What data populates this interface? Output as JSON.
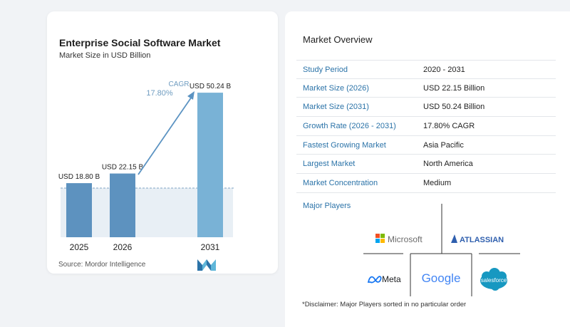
{
  "chart": {
    "title": "Enterprise Social Software Market",
    "subtitle": "Market Size in USD Billion",
    "cagr_label": "CAGR",
    "cagr_value": "17.80%",
    "source": "Source: Mordor Intelligence"
  },
  "chart_data": {
    "type": "bar",
    "title": "Enterprise Social Software Market",
    "ylabel": "Market Size in USD Billion",
    "categories": [
      "2025",
      "2026",
      "2031"
    ],
    "values": [
      18.8,
      22.15,
      50.24
    ],
    "data_labels": [
      "USD 18.80 B",
      "USD 22.15 B",
      "USD 50.24 B"
    ],
    "ylim": [
      0,
      52
    ],
    "grid": false,
    "colors": [
      "#5d92bf",
      "#5d92bf",
      "#79b2d6"
    ]
  },
  "overview": {
    "title": "Market Overview",
    "rows": [
      {
        "label": "Study Period",
        "value": "2020 - 2031"
      },
      {
        "label": "Market Size (2026)",
        "value": "USD 22.15 Billion"
      },
      {
        "label": "Market Size (2031)",
        "value": "USD 50.24 Billion"
      },
      {
        "label": "Growth Rate (2026 - 2031)",
        "value": "17.80% CAGR"
      },
      {
        "label": "Fastest Growing Market",
        "value": "Asia Pacific"
      },
      {
        "label": "Largest Market",
        "value": "North America"
      },
      {
        "label": "Market Concentration",
        "value": "Medium"
      }
    ],
    "players_title": "Major Players",
    "players": [
      "Microsoft",
      "ATLASSIAN",
      "Meta",
      "Google",
      "salesforce"
    ],
    "disclaimer": "*Disclaimer: Major Players sorted in no particular order"
  },
  "colors": {
    "accent_label": "#2b73a8",
    "bar_dark": "#5d92bf",
    "bar_light": "#79b2d6",
    "shade": "#e8eff5",
    "arrow": "#5b93c2",
    "atlassian": "#2f5fae",
    "salesforce": "#1798c1",
    "meta": "#1877f2"
  }
}
